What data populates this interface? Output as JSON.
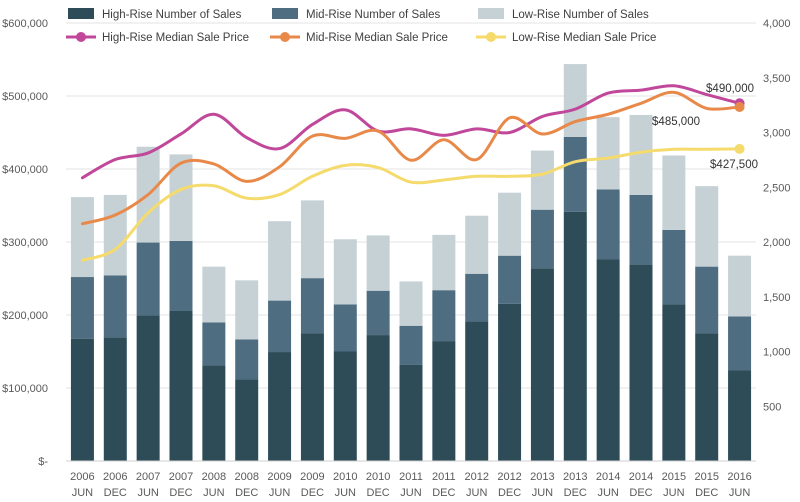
{
  "chart_data": {
    "type": "bar",
    "title": "",
    "categories": [
      [
        "2006",
        "JUN"
      ],
      [
        "2006",
        "DEC"
      ],
      [
        "2007",
        "JUN"
      ],
      [
        "2007",
        "DEC"
      ],
      [
        "2008",
        "JUN"
      ],
      [
        "2008",
        "DEC"
      ],
      [
        "2009",
        "JUN"
      ],
      [
        "2009",
        "DEC"
      ],
      [
        "2010",
        "JUN"
      ],
      [
        "2010",
        "DEC"
      ],
      [
        "2011",
        "JUN"
      ],
      [
        "2011",
        "DEC"
      ],
      [
        "2012",
        "JUN"
      ],
      [
        "2012",
        "DEC"
      ],
      [
        "2013",
        "JUN"
      ],
      [
        "2013",
        "DEC"
      ],
      [
        "2014",
        "JUN"
      ],
      [
        "2014",
        "DEC"
      ],
      [
        "2015",
        "JUN"
      ],
      [
        "2015",
        "DEC"
      ],
      [
        "2016",
        "JUN"
      ]
    ],
    "left_axis": {
      "ylim": [
        0,
        600000
      ],
      "ticks": [
        0,
        100000,
        200000,
        300000,
        400000,
        500000,
        600000
      ],
      "tick_labels": [
        "$-",
        "$100,000",
        "$200,000",
        "$300,000",
        "$400,000",
        "$500,000",
        "$600,000"
      ]
    },
    "right_axis": {
      "ylim": [
        0,
        4000
      ],
      "ticks": [
        500,
        1000,
        1500,
        2000,
        2500,
        3000,
        3500,
        4000
      ],
      "tick_labels": [
        "500",
        "1,000",
        "1,500",
        "2,000",
        "2,500",
        "3,000",
        "3,500",
        "4,000"
      ]
    },
    "bar_series": [
      {
        "name": "High-Rise Number of Sales",
        "color": "#2e4b58",
        "axis": "right",
        "values": [
          1115,
          1130,
          1330,
          1370,
          875,
          745,
          995,
          1165,
          1000,
          1150,
          880,
          1095,
          1275,
          1435,
          1760,
          2275,
          1840,
          1790,
          1430,
          1165,
          830
        ]
      },
      {
        "name": "Mid-Rise Number of Sales",
        "color": "#4e6d80",
        "axis": "right",
        "values": [
          565,
          565,
          665,
          640,
          390,
          365,
          470,
          505,
          430,
          405,
          355,
          465,
          435,
          440,
          535,
          685,
          640,
          640,
          680,
          610,
          490
        ]
      },
      {
        "name": "Low-Rise Number of Sales",
        "color": "#c5d1d5",
        "axis": "right",
        "values": [
          730,
          735,
          875,
          790,
          510,
          540,
          725,
          710,
          595,
          505,
          405,
          505,
          530,
          575,
          540,
          665,
          660,
          730,
          680,
          735,
          555
        ]
      }
    ],
    "line_series": [
      {
        "name": "High-Rise Median Sale Price",
        "color": "#c0479a",
        "axis": "left",
        "values": [
          388000,
          413000,
          422000,
          448000,
          475000,
          443000,
          428000,
          461000,
          481000,
          452000,
          455000,
          446000,
          455000,
          450000,
          472000,
          482000,
          504000,
          508000,
          514000,
          502000,
          490000
        ]
      },
      {
        "name": "Mid-Rise Median Sale Price",
        "color": "#e8894a",
        "axis": "left",
        "values": [
          325000,
          337000,
          365000,
          408000,
          407000,
          383000,
          403000,
          445000,
          442000,
          452000,
          412000,
          440000,
          413000,
          470000,
          448000,
          465000,
          475000,
          490000,
          505000,
          483000,
          485000
        ]
      },
      {
        "name": "Low-Rise Median Sale Price",
        "color": "#f5da6c",
        "axis": "left",
        "values": [
          275000,
          290000,
          340000,
          372000,
          377000,
          360000,
          365000,
          390000,
          405000,
          402000,
          382000,
          385000,
          390000,
          390000,
          393000,
          410000,
          415000,
          423000,
          427000,
          427000,
          427500
        ]
      }
    ],
    "annotations": [
      "$490,000",
      "$485,000",
      "$427,500"
    ],
    "legend_position": "top"
  }
}
